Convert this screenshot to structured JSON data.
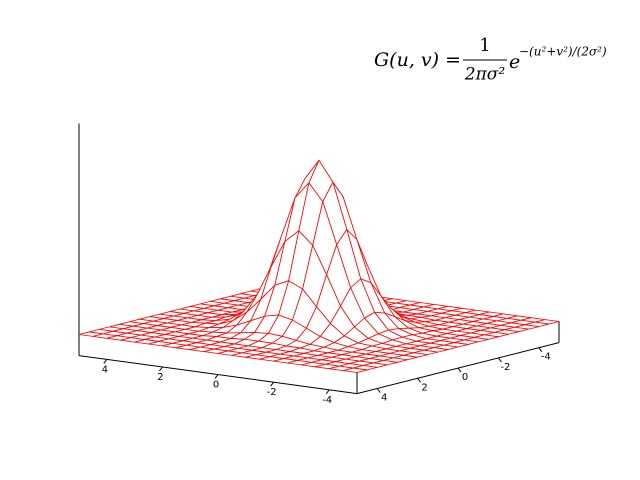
{
  "chart_data": {
    "type": "surface",
    "title": {
      "lhs": "G(u, v) =",
      "numerator": "1",
      "denominator": "2πσ²",
      "base": "e",
      "exponent": "−(u²+v²)/(2σ²)"
    },
    "color": "#ff0000",
    "x": [
      -5,
      -4.5,
      -4,
      -3.5,
      -3,
      -2.5,
      -2,
      -1.5,
      -1,
      -0.5,
      0,
      0.5,
      1,
      1.5,
      2,
      2.5,
      3,
      3.5,
      4,
      4.5,
      5
    ],
    "y": [
      -5,
      -4.5,
      -4,
      -3.5,
      -3,
      -2.5,
      -2,
      -1.5,
      -1,
      -0.5,
      0,
      0.5,
      1,
      1.5,
      2,
      2.5,
      3,
      3.5,
      4,
      4.5,
      5
    ],
    "z": [
      [
        0,
        0,
        0,
        0,
        0,
        0,
        0,
        0,
        0,
        0,
        0,
        0,
        0,
        0,
        0,
        0,
        0,
        0,
        0,
        0,
        0
      ],
      [
        0,
        0,
        0,
        0,
        0,
        0,
        0,
        0,
        0,
        0,
        0,
        0,
        0,
        0,
        0,
        0,
        0,
        0,
        0,
        0,
        0
      ],
      [
        0,
        0,
        0,
        0,
        0,
        0,
        0,
        0,
        0,
        0,
        0,
        0,
        0,
        0,
        0,
        0,
        0,
        0,
        0,
        0,
        0
      ],
      [
        0,
        0,
        0,
        0,
        0,
        0,
        0,
        0,
        0,
        0,
        0,
        0,
        0,
        0,
        0,
        0,
        0,
        0,
        0,
        0,
        0
      ],
      [
        0,
        0,
        0,
        0,
        0,
        0,
        0,
        0.001,
        0.001,
        0.002,
        0.002,
        0.002,
        0.001,
        0.001,
        0,
        0,
        0,
        0,
        0,
        0,
        0
      ],
      [
        0,
        0,
        0,
        0,
        0,
        0,
        0.001,
        0.002,
        0.004,
        0.006,
        0.007,
        0.006,
        0.004,
        0.002,
        0.001,
        0,
        0,
        0,
        0,
        0,
        0
      ],
      [
        0,
        0,
        0,
        0,
        0,
        0.001,
        0.003,
        0.007,
        0.013,
        0.019,
        0.022,
        0.019,
        0.013,
        0.007,
        0.003,
        0.001,
        0,
        0,
        0,
        0,
        0
      ],
      [
        0,
        0,
        0,
        0,
        0.001,
        0.002,
        0.007,
        0.017,
        0.031,
        0.046,
        0.052,
        0.046,
        0.031,
        0.017,
        0.007,
        0.002,
        0.001,
        0,
        0,
        0,
        0
      ],
      [
        0,
        0,
        0,
        0,
        0.001,
        0.004,
        0.013,
        0.031,
        0.059,
        0.085,
        0.097,
        0.085,
        0.059,
        0.031,
        0.013,
        0.004,
        0.001,
        0,
        0,
        0,
        0
      ],
      [
        0,
        0,
        0,
        0,
        0.002,
        0.006,
        0.019,
        0.046,
        0.085,
        0.124,
        0.14,
        0.124,
        0.085,
        0.046,
        0.019,
        0.006,
        0.002,
        0,
        0,
        0,
        0
      ],
      [
        0,
        0,
        0,
        0,
        0.002,
        0.007,
        0.022,
        0.052,
        0.097,
        0.14,
        0.159,
        0.14,
        0.097,
        0.052,
        0.022,
        0.007,
        0.002,
        0,
        0,
        0,
        0
      ],
      [
        0,
        0,
        0,
        0,
        0.002,
        0.006,
        0.019,
        0.046,
        0.085,
        0.124,
        0.14,
        0.124,
        0.085,
        0.046,
        0.019,
        0.006,
        0.002,
        0,
        0,
        0,
        0
      ],
      [
        0,
        0,
        0,
        0,
        0.001,
        0.004,
        0.013,
        0.031,
        0.059,
        0.085,
        0.097,
        0.085,
        0.059,
        0.031,
        0.013,
        0.004,
        0.001,
        0,
        0,
        0,
        0
      ],
      [
        0,
        0,
        0,
        0,
        0.001,
        0.002,
        0.007,
        0.017,
        0.031,
        0.046,
        0.052,
        0.046,
        0.031,
        0.017,
        0.007,
        0.002,
        0.001,
        0,
        0,
        0,
        0
      ],
      [
        0,
        0,
        0,
        0,
        0,
        0.001,
        0.003,
        0.007,
        0.013,
        0.019,
        0.022,
        0.019,
        0.013,
        0.007,
        0.003,
        0.001,
        0,
        0,
        0,
        0,
        0
      ],
      [
        0,
        0,
        0,
        0,
        0,
        0,
        0.001,
        0.002,
        0.004,
        0.006,
        0.007,
        0.006,
        0.004,
        0.002,
        0.001,
        0,
        0,
        0,
        0,
        0,
        0
      ],
      [
        0,
        0,
        0,
        0,
        0,
        0,
        0,
        0.001,
        0.001,
        0.002,
        0.002,
        0.002,
        0.001,
        0.001,
        0,
        0,
        0,
        0,
        0,
        0,
        0
      ],
      [
        0,
        0,
        0,
        0,
        0,
        0,
        0,
        0,
        0,
        0,
        0,
        0,
        0,
        0,
        0,
        0,
        0,
        0,
        0,
        0,
        0
      ],
      [
        0,
        0,
        0,
        0,
        0,
        0,
        0,
        0,
        0,
        0,
        0,
        0,
        0,
        0,
        0,
        0,
        0,
        0,
        0,
        0,
        0
      ],
      [
        0,
        0,
        0,
        0,
        0,
        0,
        0,
        0,
        0,
        0,
        0,
        0,
        0,
        0,
        0,
        0,
        0,
        0,
        0,
        0,
        0
      ],
      [
        0,
        0,
        0,
        0,
        0,
        0,
        0,
        0,
        0,
        0,
        0,
        0,
        0,
        0,
        0,
        0,
        0,
        0,
        0,
        0,
        0
      ]
    ],
    "xlim": [
      -5,
      5
    ],
    "ylim": [
      -5,
      5
    ],
    "zlim": [
      -0.02,
      0.2
    ],
    "xticks": [
      4,
      2,
      0,
      -2,
      -4
    ],
    "yticks": [
      4,
      2,
      0,
      -2,
      -4
    ]
  }
}
